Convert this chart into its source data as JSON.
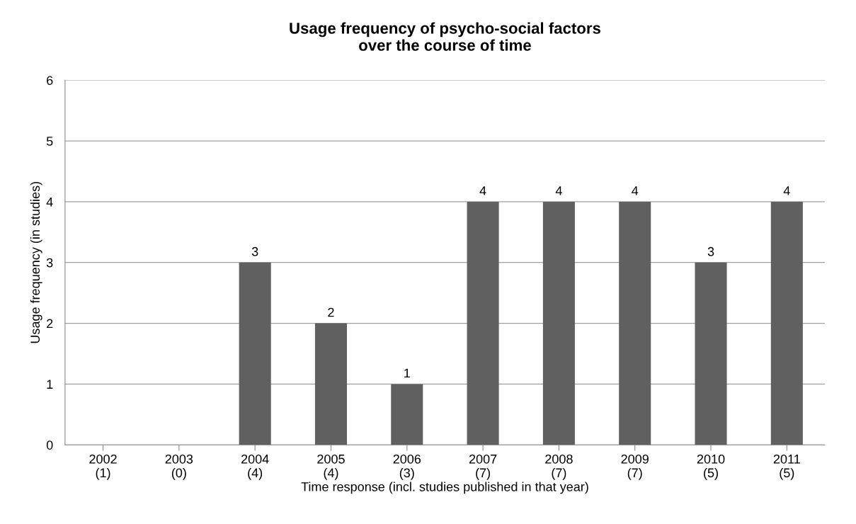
{
  "chart_data": {
    "type": "bar",
    "title": "Usage frequency of psycho-social factors\nover the course of time",
    "xlabel": "Time response (incl. studies published in that year)",
    "ylabel": "Usage frequency (in studies)",
    "categories": [
      "2002\n(1)",
      "2003\n(0)",
      "2004\n(4)",
      "2005\n(4)",
      "2006\n(3)",
      "2007\n(7)",
      "2008\n(7)",
      "2009\n(7)",
      "2010\n(5)",
      "2011\n(5)"
    ],
    "values": [
      0,
      0,
      3,
      2,
      1,
      4,
      4,
      4,
      3,
      4
    ],
    "value_labels": [
      null,
      null,
      "3",
      "2",
      "1",
      "4",
      "4",
      "4",
      "3",
      "4"
    ],
    "color": "#606060",
    "ylim": [
      0,
      6
    ],
    "yticks": [
      0,
      1,
      2,
      3,
      4,
      5,
      6
    ],
    "grid": "y",
    "legend": false
  }
}
